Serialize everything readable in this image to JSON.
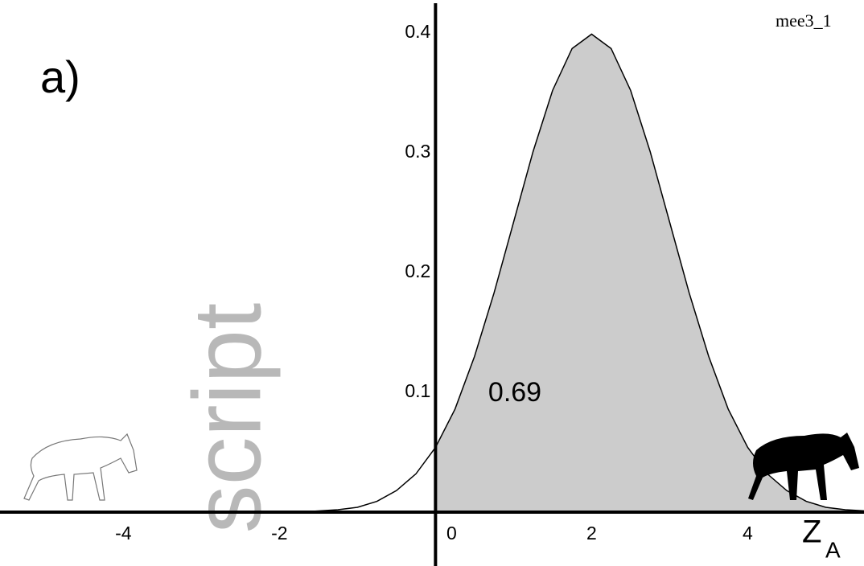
{
  "chart_data": {
    "type": "line",
    "panel_label": "a)",
    "corner_text": "mee3_1",
    "watermark": "script",
    "x_label": "Z",
    "x_label_subscript": "A",
    "annotation": "0.69",
    "x": [
      -5.5,
      -5.25,
      -5,
      -4.75,
      -4.5,
      -4.25,
      -4,
      -3.75,
      -3.5,
      -3.25,
      -3,
      -2.75,
      -2.5,
      -2.25,
      -2,
      -1.75,
      -1.5,
      -1.25,
      -1,
      -0.75,
      -0.5,
      -0.25,
      0,
      0.25,
      0.5,
      0.75,
      1,
      1.25,
      1.5,
      1.75,
      2,
      2.25,
      2.5,
      2.75,
      3,
      3.25,
      3.5,
      3.75,
      4,
      4.25,
      4.5,
      4.75,
      5,
      5.25,
      5.5
    ],
    "values": [
      0,
      0,
      0,
      0,
      0,
      0,
      0,
      0,
      0,
      0,
      0,
      0,
      0,
      0,
      0,
      0,
      0.001,
      0.002,
      0.004,
      0.009,
      0.018,
      0.032,
      0.054,
      0.086,
      0.13,
      0.183,
      0.242,
      0.301,
      0.352,
      0.387,
      0.399,
      0.387,
      0.352,
      0.301,
      0.242,
      0.183,
      0.13,
      0.086,
      0.054,
      0.032,
      0.018,
      0.009,
      0.004,
      0.002,
      0.001
    ],
    "color": "#000000",
    "shaded_from": 0,
    "shade_color": "#cccccc",
    "xlim": [
      -5.58,
      5.49
    ],
    "ylim": [
      -0.045,
      0.4275
    ],
    "xticks": [
      -4,
      -2,
      0,
      2,
      4
    ],
    "yticks": [
      0.1,
      0.2,
      0.3,
      0.4
    ],
    "grid": false
  }
}
